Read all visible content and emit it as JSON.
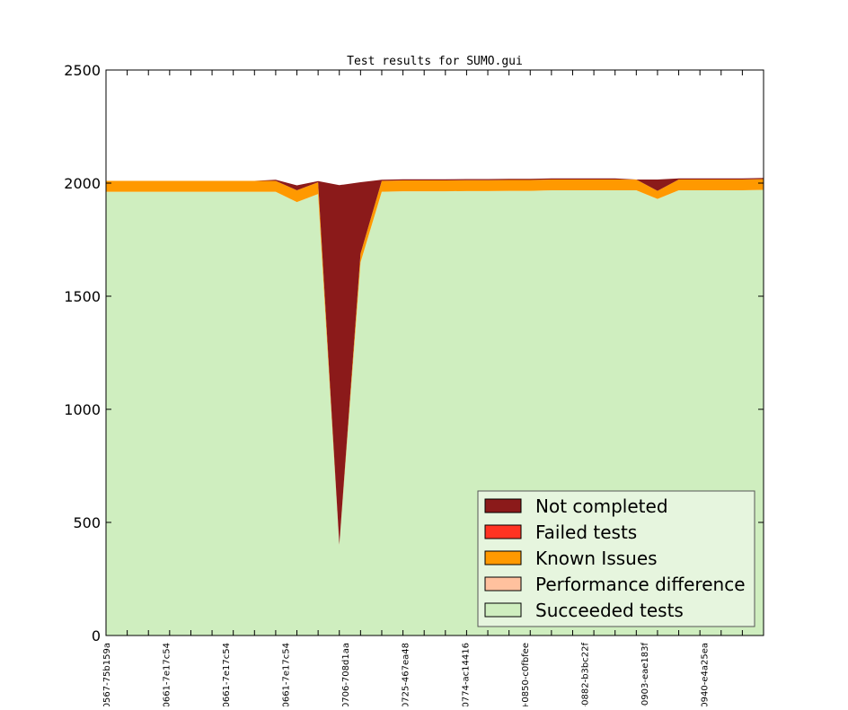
{
  "chart_data": {
    "type": "area",
    "stacked": true,
    "title": "Test results for SUMO.gui",
    "xlabel": "",
    "ylabel": "",
    "ylim": [
      0,
      2500
    ],
    "yticks": [
      0,
      500,
      1000,
      1500,
      2000,
      2500
    ],
    "grid": false,
    "legend_position": "lower right",
    "x_tick_labels": [
      "0567-75b159a",
      "0661-7e17c54",
      "0661-7e17c54",
      "0661-7e17c54",
      "0706-708d1aa",
      "0725-467ea48",
      "0774-ac14416",
      "+0850-c0fbfee",
      "-0882-b3bc22f",
      "-0903-eae183f",
      "0940-e4a25ea"
    ],
    "num_points": 32,
    "series": [
      {
        "name": "Succeeded tests",
        "color": "#cfeebf",
        "values": [
          1962,
          1962,
          1962,
          1962,
          1962,
          1962,
          1962,
          1962,
          1962,
          1916,
          1952,
          400,
          1650,
          1962,
          1964,
          1964,
          1964,
          1965,
          1965,
          1966,
          1966,
          1968,
          1968,
          1968,
          1968,
          1968,
          1930,
          1968,
          1968,
          1968,
          1968,
          1970
        ]
      },
      {
        "name": "Performance difference",
        "color": "#ffc19e",
        "values": [
          0,
          0,
          0,
          0,
          0,
          0,
          0,
          0,
          0,
          0,
          0,
          0,
          0,
          0,
          0,
          0,
          0,
          0,
          0,
          0,
          0,
          0,
          0,
          0,
          0,
          0,
          0,
          0,
          0,
          0,
          0,
          0
        ]
      },
      {
        "name": "Known Issues",
        "color": "#ff9900",
        "values": [
          48,
          48,
          48,
          48,
          48,
          48,
          48,
          48,
          48,
          52,
          52,
          2,
          38,
          48,
          48,
          48,
          48,
          48,
          48,
          48,
          48,
          48,
          48,
          48,
          48,
          48,
          36,
          48,
          48,
          48,
          48,
          48
        ]
      },
      {
        "name": "Failed tests",
        "color": "#ff3322",
        "values": [
          0,
          0,
          0,
          0,
          0,
          0,
          0,
          0,
          0,
          0,
          0,
          0,
          0,
          0,
          0,
          0,
          0,
          0,
          0,
          0,
          0,
          0,
          0,
          0,
          0,
          0,
          0,
          0,
          0,
          0,
          0,
          0
        ]
      },
      {
        "name": "Not completed",
        "color": "#8b1a1a",
        "values": [
          0,
          0,
          0,
          0,
          0,
          0,
          0,
          0,
          5,
          22,
          5,
          1589,
          316,
          5,
          5,
          5,
          5,
          5,
          5,
          5,
          5,
          5,
          5,
          5,
          5,
          0,
          50,
          5,
          5,
          5,
          5,
          5
        ]
      }
    ],
    "legend_order": [
      "Not completed",
      "Failed tests",
      "Known Issues",
      "Performance difference",
      "Succeeded tests"
    ]
  }
}
